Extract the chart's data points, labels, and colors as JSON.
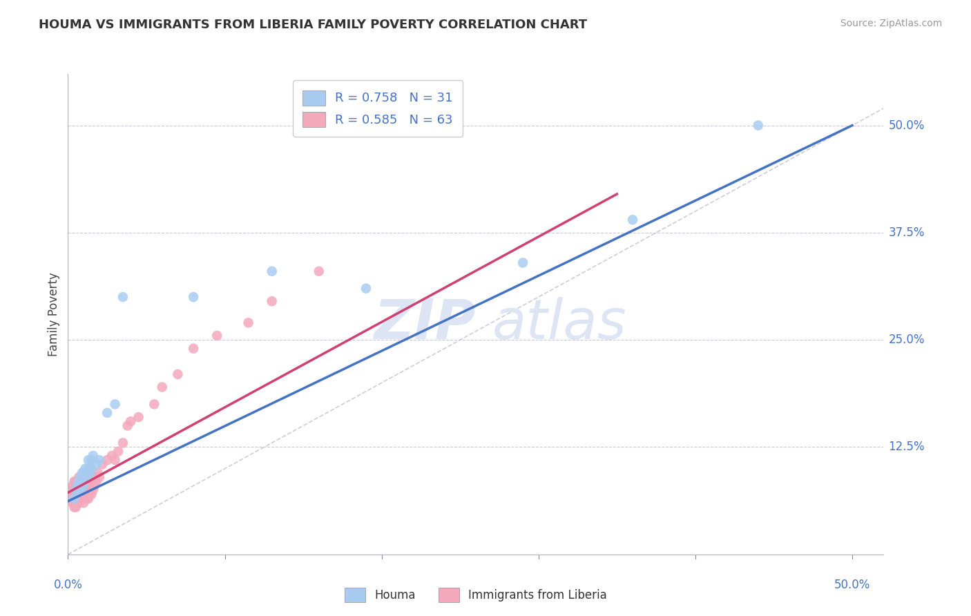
{
  "title": "HOUMA VS IMMIGRANTS FROM LIBERIA FAMILY POVERTY CORRELATION CHART",
  "source": "Source: ZipAtlas.com",
  "ylabel": "Family Poverty",
  "ytick_values": [
    0.125,
    0.25,
    0.375,
    0.5
  ],
  "ytick_labels": [
    "12.5%",
    "25.0%",
    "37.5%",
    "50.0%"
  ],
  "xlim": [
    0.0,
    0.52
  ],
  "ylim": [
    0.0,
    0.56
  ],
  "houma_R": 0.758,
  "houma_N": 31,
  "liberia_R": 0.585,
  "liberia_N": 63,
  "houma_color": "#A8CCF0",
  "liberia_color": "#F4A8BC",
  "houma_line_color": "#4472C4",
  "liberia_line_color": "#D04070",
  "diagonal_color": "#C0C0D0",
  "background_color": "#FFFFFF",
  "watermark_zip": "ZIP",
  "watermark_atlas": "atlas",
  "houma_x": [
    0.004,
    0.005,
    0.006,
    0.007,
    0.007,
    0.008,
    0.008,
    0.009,
    0.009,
    0.01,
    0.01,
    0.011,
    0.011,
    0.012,
    0.013,
    0.013,
    0.014,
    0.015,
    0.015,
    0.016,
    0.018,
    0.02,
    0.025,
    0.03,
    0.035,
    0.08,
    0.13,
    0.19,
    0.29,
    0.36,
    0.44
  ],
  "houma_y": [
    0.065,
    0.075,
    0.08,
    0.075,
    0.085,
    0.075,
    0.09,
    0.085,
    0.095,
    0.08,
    0.095,
    0.09,
    0.1,
    0.09,
    0.1,
    0.11,
    0.095,
    0.1,
    0.11,
    0.115,
    0.105,
    0.11,
    0.165,
    0.175,
    0.3,
    0.3,
    0.33,
    0.31,
    0.34,
    0.39,
    0.5
  ],
  "liberia_x": [
    0.002,
    0.002,
    0.003,
    0.003,
    0.003,
    0.004,
    0.004,
    0.004,
    0.004,
    0.005,
    0.005,
    0.005,
    0.005,
    0.006,
    0.006,
    0.006,
    0.007,
    0.007,
    0.007,
    0.007,
    0.008,
    0.008,
    0.008,
    0.009,
    0.009,
    0.01,
    0.01,
    0.01,
    0.011,
    0.011,
    0.012,
    0.012,
    0.013,
    0.013,
    0.013,
    0.014,
    0.014,
    0.014,
    0.015,
    0.015,
    0.016,
    0.016,
    0.017,
    0.018,
    0.019,
    0.02,
    0.022,
    0.025,
    0.028,
    0.03,
    0.032,
    0.035,
    0.038,
    0.04,
    0.045,
    0.055,
    0.06,
    0.07,
    0.08,
    0.095,
    0.115,
    0.13,
    0.16
  ],
  "liberia_y": [
    0.065,
    0.075,
    0.06,
    0.07,
    0.08,
    0.055,
    0.065,
    0.075,
    0.085,
    0.055,
    0.065,
    0.075,
    0.085,
    0.06,
    0.07,
    0.08,
    0.06,
    0.07,
    0.08,
    0.09,
    0.065,
    0.075,
    0.085,
    0.07,
    0.08,
    0.06,
    0.07,
    0.085,
    0.065,
    0.075,
    0.065,
    0.08,
    0.065,
    0.08,
    0.095,
    0.07,
    0.085,
    0.1,
    0.07,
    0.085,
    0.075,
    0.09,
    0.08,
    0.085,
    0.095,
    0.09,
    0.105,
    0.11,
    0.115,
    0.11,
    0.12,
    0.13,
    0.15,
    0.155,
    0.16,
    0.175,
    0.195,
    0.21,
    0.24,
    0.255,
    0.27,
    0.295,
    0.33
  ],
  "houma_line_x": [
    0.0,
    0.5
  ],
  "houma_line_y": [
    0.062,
    0.5
  ],
  "liberia_line_x": [
    0.0,
    0.35
  ],
  "liberia_line_y": [
    0.072,
    0.42
  ]
}
